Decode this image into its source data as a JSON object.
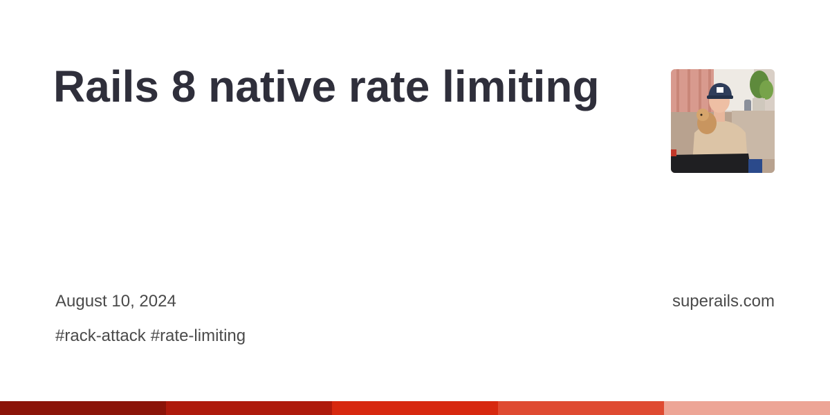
{
  "post": {
    "title": "Rails 8 native rate limiting",
    "date": "August 10, 2024",
    "tags": [
      "#rack-attack",
      "#rate-limiting"
    ]
  },
  "site": {
    "domain": "superails.com"
  },
  "author": {
    "avatar_icon": "author-photo"
  },
  "stripe": {
    "colors": [
      "#8b1409",
      "#ae1a0c",
      "#d7280f",
      "#df4a31",
      "#eda596"
    ]
  }
}
